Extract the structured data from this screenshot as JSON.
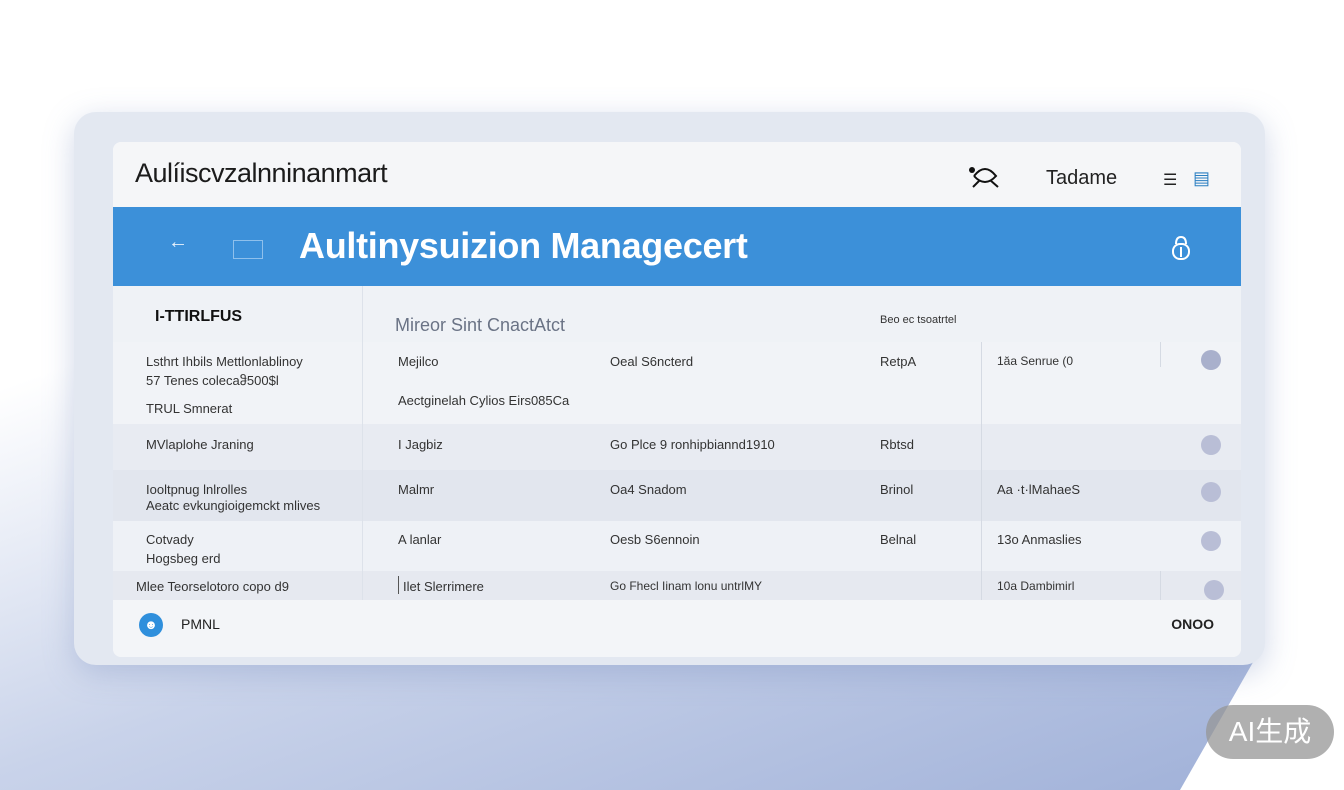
{
  "header": {
    "app_title": "Aulíiscvzalnninanmart",
    "user_name": "Tadame"
  },
  "banner": {
    "title": "Aultinysuizion Managecert"
  },
  "table": {
    "left_header": "I-TTIRLFUS",
    "main_header": "Mireor Sint CnactAtct",
    "col3_header": "Beo ec tsoatrtel",
    "rows": [
      {
        "left": [
          "Lsthrt Ihbils Mettlonlablinoy",
          "57 Tenes colecaჵ500$l",
          "TRUL Smnerat"
        ],
        "c1": "Mejilco",
        "c1b": "Aectginelah Cylios Eirs085Ca",
        "c2": "Oeal S6ncterd",
        "c3": "RetpA",
        "c4": "1ăa Senrue (0"
      },
      {
        "left": [
          "MVlaplohe Jraning"
        ],
        "c1": "I Jagbiz",
        "c2": "Go Plce 9 ronhipbiannd1910",
        "c3": "Rbtsd",
        "c4": ""
      },
      {
        "left": [
          "Iooltpnug lnlrolles",
          "Aeatc evkungioigemckt mlives"
        ],
        "c1": "Malmr",
        "c2": "Oa4 Snadom",
        "c3": "Brinol",
        "c4": "Aa ·t·lMahaeS"
      },
      {
        "left": [
          "Cotvady",
          "Hogsbeg erd"
        ],
        "c1": "A lanlar",
        "c2": "Oesb S6ennoin",
        "c3": "Belnal",
        "c4": "13o Anmaslies"
      },
      {
        "left": [
          "Mlee Teorselotoro copo d9"
        ],
        "c1": "Ilet Slerrimere",
        "c2": "Go Fhecl Iinam lonu untrlMY",
        "c3": "",
        "c4": "10a Dambimirl"
      }
    ]
  },
  "footer": {
    "label": "PMNL",
    "right": "ONOO"
  },
  "watermark": "AI生成",
  "colors": {
    "accent": "#3c90d9",
    "status_dot": "#b9bed6"
  }
}
